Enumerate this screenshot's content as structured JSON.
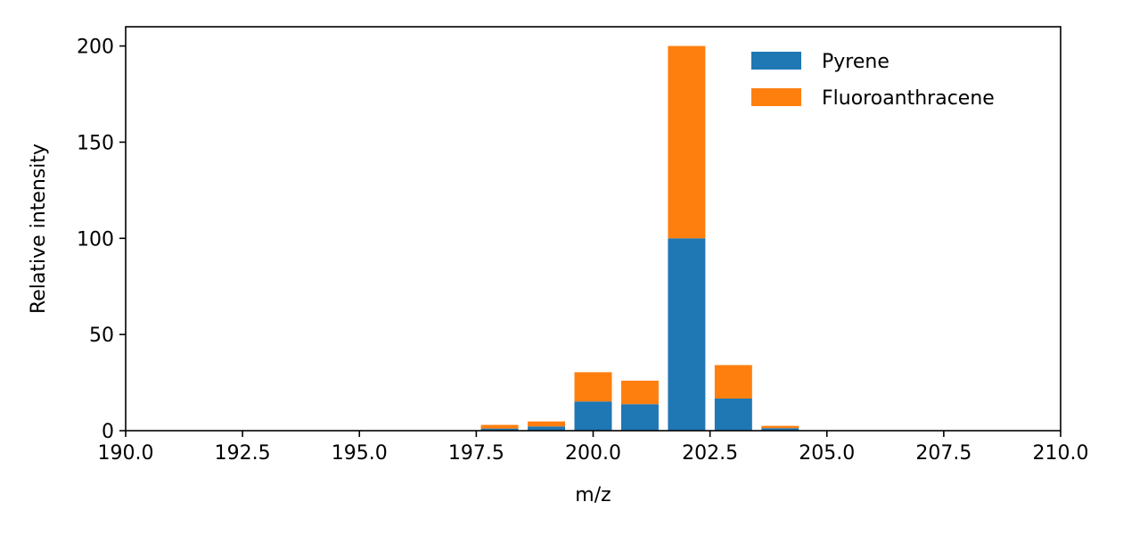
{
  "chart_data": {
    "type": "bar",
    "stacked": true,
    "x": [
      198,
      199,
      200,
      201,
      202,
      203,
      204
    ],
    "series": [
      {
        "name": "Pyrene",
        "color": "#1f77b4",
        "values": [
          1.1,
          2.2,
          15.2,
          13.8,
          100,
          16.7,
          1.3
        ]
      },
      {
        "name": "Fluoroanthracene",
        "color": "#ff7f0e",
        "values": [
          1.9,
          2.6,
          15.2,
          12.2,
          100,
          17.4,
          1.2
        ]
      }
    ],
    "bar_width": 0.8,
    "xlabel": "m/z",
    "ylabel": "Relative intensity",
    "xlim": [
      190.0,
      210.0
    ],
    "ylim": [
      0,
      210
    ],
    "xticks": [
      "190.0",
      "192.5",
      "195.0",
      "197.5",
      "200.0",
      "202.5",
      "205.0",
      "207.5",
      "210.0"
    ],
    "yticks": [
      "0",
      "50",
      "100",
      "150",
      "200"
    ],
    "legend": "top-right",
    "grid": false
  }
}
